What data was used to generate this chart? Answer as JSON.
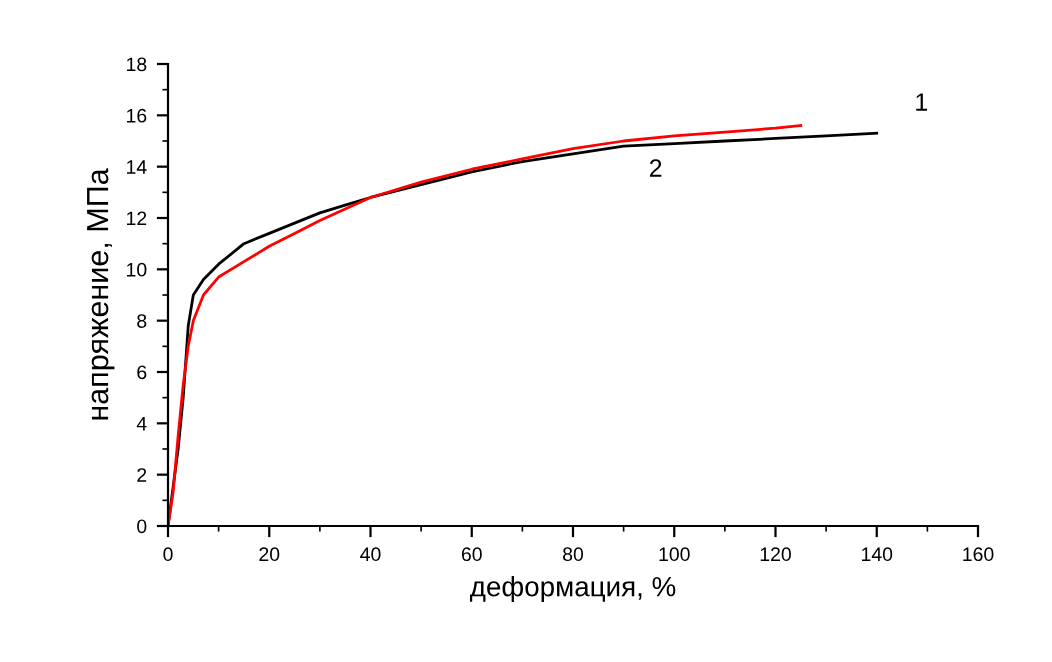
{
  "chart_data": {
    "type": "line",
    "xlabel": "деформация, %",
    "ylabel": "напряжение, МПа",
    "xlim": [
      0,
      160
    ],
    "ylim": [
      0,
      18
    ],
    "xticks": [
      0,
      20,
      40,
      60,
      80,
      100,
      120,
      140,
      160
    ],
    "yticks": [
      0,
      2,
      4,
      6,
      8,
      10,
      12,
      14,
      16,
      18
    ],
    "grid": false,
    "marker": "none",
    "line_style": "solid",
    "series": [
      {
        "color": "#000000",
        "x": [
          0,
          1,
          2,
          3,
          4,
          5,
          7,
          10,
          15,
          20,
          25,
          30,
          35,
          40,
          50,
          60,
          70,
          80,
          90,
          100,
          110,
          120,
          130,
          140
        ],
        "values": [
          0,
          1.5,
          3,
          5,
          7.8,
          9,
          9.6,
          10.2,
          11,
          11.4,
          11.8,
          12.2,
          12.5,
          12.8,
          13.3,
          13.8,
          14.2,
          14.5,
          14.8,
          14.9,
          15.0,
          15.1,
          15.2,
          15.3
        ]
      },
      {
        "color": "#ff0000",
        "x": [
          0,
          1,
          2,
          3,
          4,
          5,
          7,
          10,
          15,
          20,
          25,
          30,
          40,
          50,
          60,
          70,
          80,
          90,
          100,
          110,
          120,
          125
        ],
        "values": [
          0,
          1.3,
          3.5,
          5.5,
          7,
          8,
          9,
          9.7,
          10.3,
          10.9,
          11.4,
          11.9,
          12.8,
          13.4,
          13.9,
          14.3,
          14.7,
          15.0,
          15.2,
          15.35,
          15.5,
          15.6
        ]
      }
    ],
    "annotations": [
      "1",
      "2"
    ]
  }
}
